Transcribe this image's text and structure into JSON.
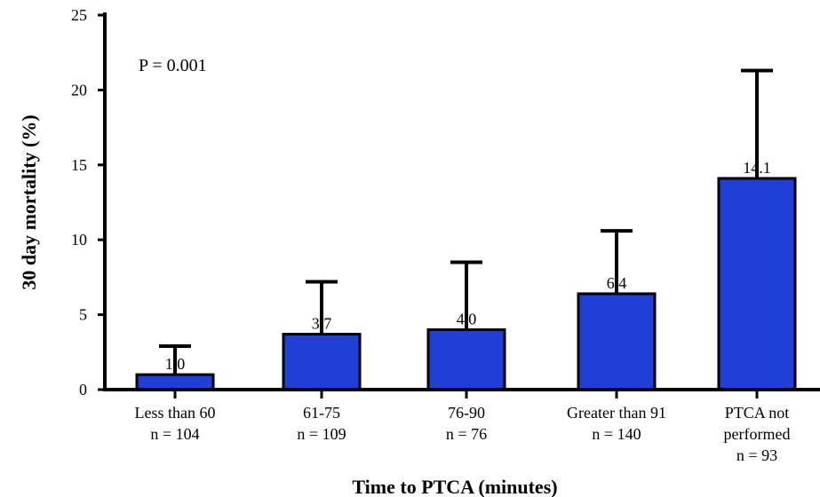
{
  "chart_data": {
    "type": "bar",
    "title": "",
    "xlabel": "Time to PTCA (minutes)",
    "ylabel": "30 day mortality (%)",
    "ylim": [
      0,
      25
    ],
    "yticks": [
      "0",
      "5",
      "10",
      "15",
      "20",
      "25"
    ],
    "categories": [
      [
        "Less than 60",
        "n = 104"
      ],
      [
        "61-75",
        "n = 109"
      ],
      [
        "76-90",
        "n = 76"
      ],
      [
        "Greater than 91",
        "n = 140"
      ],
      [
        "PTCA not",
        "performed",
        "n = 93"
      ]
    ],
    "values": [
      1.0,
      3.7,
      4.0,
      6.4,
      14.1
    ],
    "value_labels": [
      "1.0",
      "3.7",
      "4.0",
      "6.4",
      "14.1"
    ],
    "error_upper": [
      2.9,
      7.2,
      8.5,
      10.6,
      21.3
    ],
    "annotation": "P = 0.001",
    "grid": false,
    "legend": "none",
    "colors": {
      "bar": "#1f3fd6",
      "bar_edge": "#000000",
      "axis": "#000000"
    }
  }
}
